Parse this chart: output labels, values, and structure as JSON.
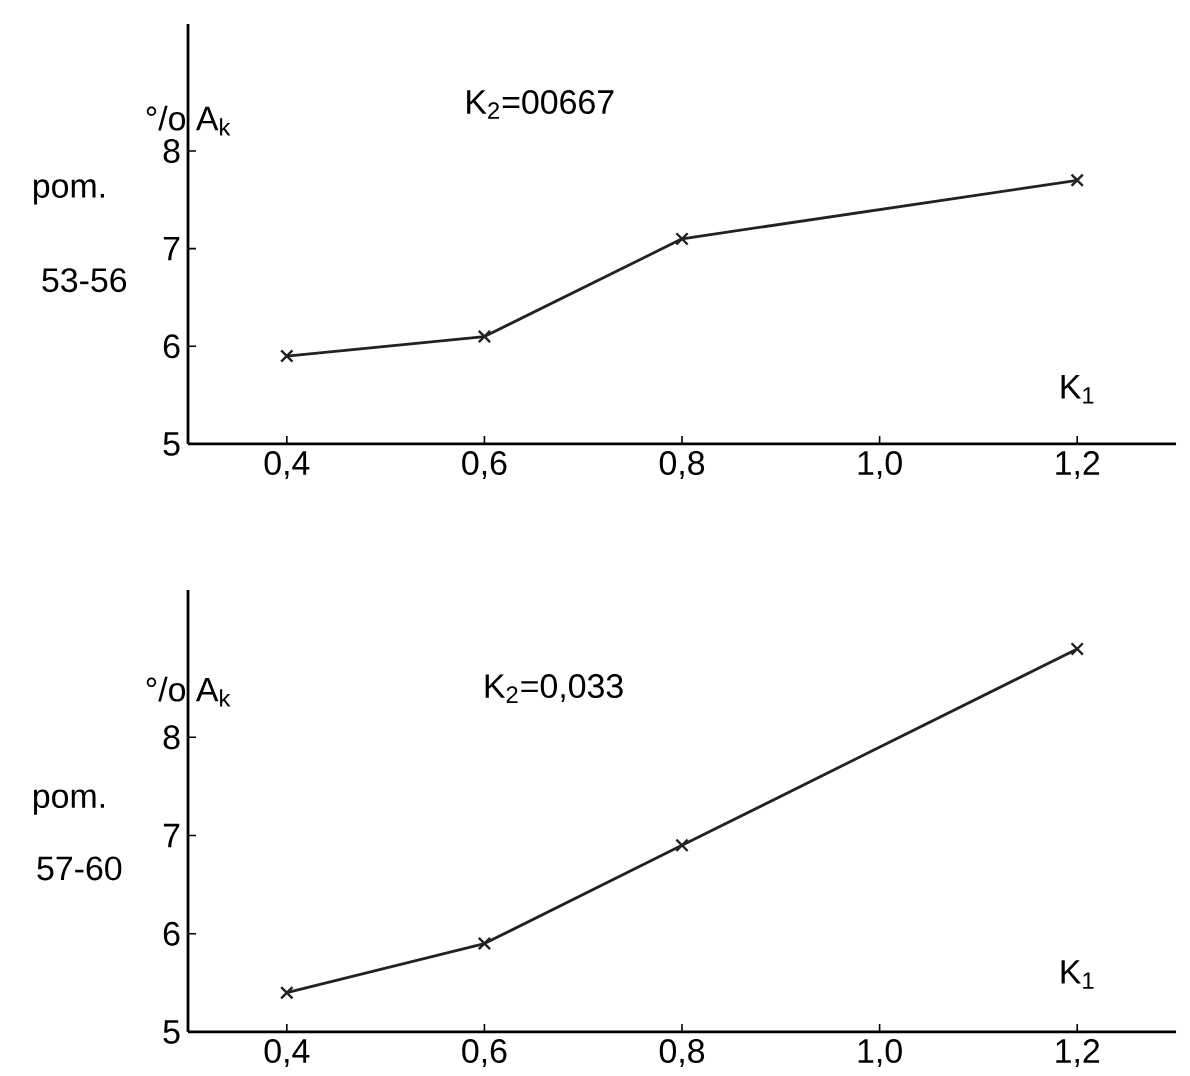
{
  "chart_data": [
    {
      "type": "line",
      "title": "K$_{2}$=00667",
      "xlabel": "K$_{1}$",
      "ylabel": "°/o A$_{k}$",
      "annotations": [
        "pom.",
        "53-56"
      ],
      "x": [
        0.4,
        0.6,
        0.8,
        1.2
      ],
      "values": [
        5.9,
        6.1,
        7.1,
        7.7
      ],
      "color": "#222222",
      "marker": "cross",
      "line_style": "solid",
      "xlim": [
        0.3,
        1.3
      ],
      "ylim": [
        5,
        9.3
      ],
      "xticks": [
        {
          "value": 0.4,
          "label": "0,4"
        },
        {
          "value": 0.6,
          "label": "0,6"
        },
        {
          "value": 0.8,
          "label": "0,8"
        },
        {
          "value": 1.0,
          "label": "1,0"
        },
        {
          "value": 1.2,
          "label": "1,2"
        }
      ],
      "yticks": [
        5,
        6,
        7,
        8
      ]
    },
    {
      "type": "line",
      "title": "K$_{2}$=0,033",
      "xlabel": "K$_{1}$",
      "ylabel": "°/o A$_{k}$",
      "annotations": [
        "pom.",
        "57-60"
      ],
      "x": [
        0.4,
        0.6,
        0.8,
        1.2
      ],
      "values": [
        5.4,
        5.9,
        6.9,
        8.9
      ],
      "color": "#222222",
      "marker": "cross",
      "line_style": "solid",
      "xlim": [
        0.3,
        1.3
      ],
      "ylim": [
        5,
        9.5
      ],
      "xticks": [
        {
          "value": 0.4,
          "label": "0,4"
        },
        {
          "value": 0.6,
          "label": "0,6"
        },
        {
          "value": 0.8,
          "label": "0,8"
        },
        {
          "value": 1.0,
          "label": "1,0"
        },
        {
          "value": 1.2,
          "label": "1,2"
        }
      ],
      "yticks": [
        5,
        6,
        7,
        8
      ]
    }
  ]
}
